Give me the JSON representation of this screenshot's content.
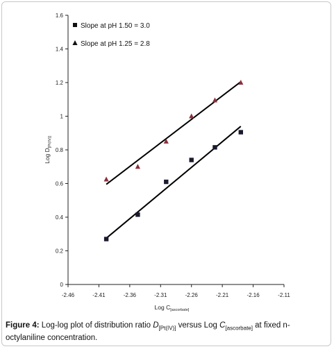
{
  "chart_data": {
    "type": "scatter",
    "xlabel": "Log C",
    "xlabel_sub": "[ascorbate]",
    "ylabel": "Log D",
    "ylabel_sub": "[Pt(IV)]",
    "xlim": [
      -2.46,
      -2.11
    ],
    "ylim": [
      0,
      1.6
    ],
    "xticks": [
      "-2.46",
      "-2.41",
      "-2.36",
      "-2.31",
      "-2.26",
      "-2.21",
      "-2.16",
      "-2.11"
    ],
    "yticks": [
      "0",
      "0.2",
      "0.4",
      "0.6",
      "0.8",
      "1",
      "1.2",
      "1.4",
      "1.6"
    ],
    "legend_position": "top-left",
    "series": [
      {
        "name": "Slope at pH 1.50 = 3.0",
        "marker": "square",
        "color": "#1a1a2e",
        "points": [
          [
            -2.398,
            0.27
          ],
          [
            -2.347,
            0.415
          ],
          [
            -2.301,
            0.61
          ],
          [
            -2.26,
            0.74
          ],
          [
            -2.222,
            0.815
          ],
          [
            -2.18,
            0.905
          ]
        ],
        "fit": [
          [
            -2.398,
            0.275
          ],
          [
            -2.18,
            0.94
          ]
        ]
      },
      {
        "name": "Slope at pH 1.25  = 2.8",
        "marker": "triangle",
        "color": "#8b2f3c",
        "points": [
          [
            -2.398,
            0.625
          ],
          [
            -2.347,
            0.7
          ],
          [
            -2.301,
            0.85
          ],
          [
            -2.26,
            1.0
          ],
          [
            -2.222,
            1.095
          ],
          [
            -2.18,
            1.2
          ]
        ],
        "fit": [
          [
            -2.398,
            0.595
          ],
          [
            -2.18,
            1.205
          ]
        ]
      }
    ]
  },
  "caption": {
    "label": "Figure 4:",
    "text_1": " Log-log plot of distribution ratio ",
    "d_symbol": "D",
    "d_sub": "[Pt(IV)]",
    "text_2": " versus Log ",
    "c_symbol": "C",
    "c_sub": "[ascorbate]",
    "text_3": " at fixed n-octylaniline concentration."
  }
}
